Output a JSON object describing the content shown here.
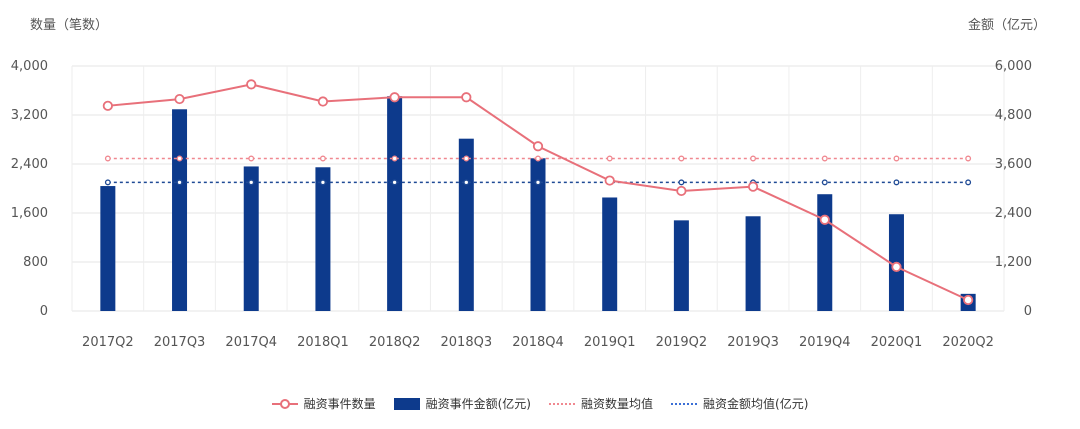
{
  "chart_data": {
    "type": "bar+line",
    "categories": [
      "2017Q2",
      "2017Q3",
      "2017Q4",
      "2018Q1",
      "2018Q2",
      "2018Q3",
      "2018Q4",
      "2019Q1",
      "2019Q2",
      "2019Q3",
      "2019Q4",
      "2020Q1",
      "2020Q2"
    ],
    "series": [
      {
        "name": "融资事件数量",
        "type": "line",
        "axis": "left",
        "values": [
          3350,
          3460,
          3700,
          3420,
          3490,
          3490,
          2690,
          2130,
          1960,
          2030,
          1490,
          720,
          180
        ]
      },
      {
        "name": "融资事件金额(亿元)",
        "type": "bar",
        "axis": "right",
        "values": [
          3060,
          4940,
          3540,
          3520,
          5260,
          4220,
          3740,
          2780,
          2220,
          2320,
          2860,
          2370,
          420
        ]
      },
      {
        "name": "融资数量均值",
        "type": "line-dashed",
        "axis": "left",
        "values": [
          2490,
          2490,
          2490,
          2490,
          2490,
          2490,
          2490,
          2490,
          2490,
          2490,
          2490,
          2490,
          2490
        ]
      },
      {
        "name": "融资金额均值(亿元)",
        "type": "line-dashed",
        "axis": "right",
        "values": [
          3150,
          3150,
          3150,
          3150,
          3150,
          3150,
          3150,
          3150,
          3150,
          3150,
          3150,
          3150,
          3150
        ]
      }
    ],
    "ylabel": "数量（笔数）",
    "y2label": "金额（亿元）",
    "ylim": [
      0,
      4000
    ],
    "y2lim": [
      0,
      6000
    ],
    "yticks": [
      "0",
      "800",
      "1,600",
      "2,400",
      "3,200",
      "4,000"
    ],
    "y2ticks": [
      "0",
      "1,200",
      "2,400",
      "3,600",
      "4,800",
      "6,000"
    ],
    "grid": true,
    "legend_position": "bottom",
    "colors": {
      "count": "#e8707a",
      "amount": "#0d3a8c",
      "count_avg": "#f08890",
      "amount_avg": "#1f4a95"
    }
  }
}
